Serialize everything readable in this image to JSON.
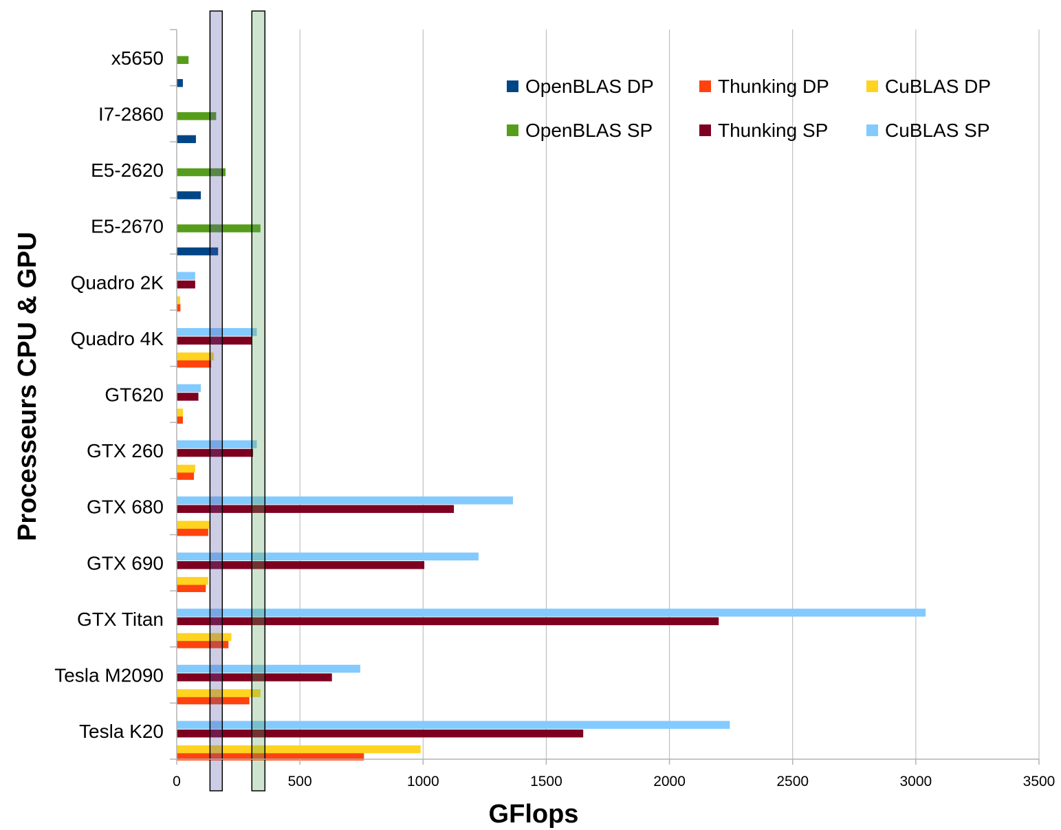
{
  "chart_data": {
    "type": "bar",
    "orientation": "horizontal",
    "title": "",
    "xlabel": "GFlops",
    "ylabel": "Processeurs CPU & GPU",
    "xlim": [
      0,
      3500
    ],
    "xticks": [
      0,
      500,
      1000,
      1500,
      2000,
      2500,
      3000,
      3500
    ],
    "grid": "vertical",
    "legend_position": "top-right",
    "categories": [
      "x5650",
      "I7-2860",
      "E5-2620",
      "E5-2670",
      "Quadro 2K",
      "Quadro 4K",
      "GT620",
      "GTX 260",
      "GTX 680",
      "GTX 690",
      "GTX Titan",
      "Tesla M2090",
      "Tesla K20"
    ],
    "series": [
      {
        "name": "OpenBLAS DP",
        "color": "#004586",
        "values": [
          25,
          78,
          98,
          168,
          null,
          null,
          null,
          null,
          null,
          null,
          null,
          null,
          null
        ]
      },
      {
        "name": "Thunking DP",
        "color": "#ff420e",
        "values": [
          null,
          null,
          null,
          null,
          15,
          140,
          25,
          70,
          128,
          118,
          210,
          295,
          760
        ]
      },
      {
        "name": "CuBLAS DP",
        "color": "#ffd320",
        "values": [
          null,
          null,
          null,
          null,
          14,
          150,
          25,
          75,
          133,
          128,
          222,
          340,
          990
        ]
      },
      {
        "name": "OpenBLAS SP",
        "color": "#579d1c",
        "values": [
          48,
          160,
          198,
          340,
          null,
          null,
          null,
          null,
          null,
          null,
          null,
          null,
          null
        ]
      },
      {
        "name": "Thunking SP",
        "color": "#7e0021",
        "values": [
          null,
          null,
          null,
          null,
          75,
          305,
          88,
          310,
          1125,
          1005,
          2200,
          630,
          1650
        ]
      },
      {
        "name": "CuBLAS SP",
        "color": "#83caff",
        "values": [
          null,
          null,
          null,
          null,
          75,
          325,
          98,
          325,
          1365,
          1225,
          3040,
          745,
          2245
        ]
      }
    ],
    "highlight_bands": [
      {
        "from": 135,
        "to": 185,
        "color": "#5b5baa"
      },
      {
        "from": 305,
        "to": 358,
        "color": "#5ea45e"
      }
    ]
  }
}
